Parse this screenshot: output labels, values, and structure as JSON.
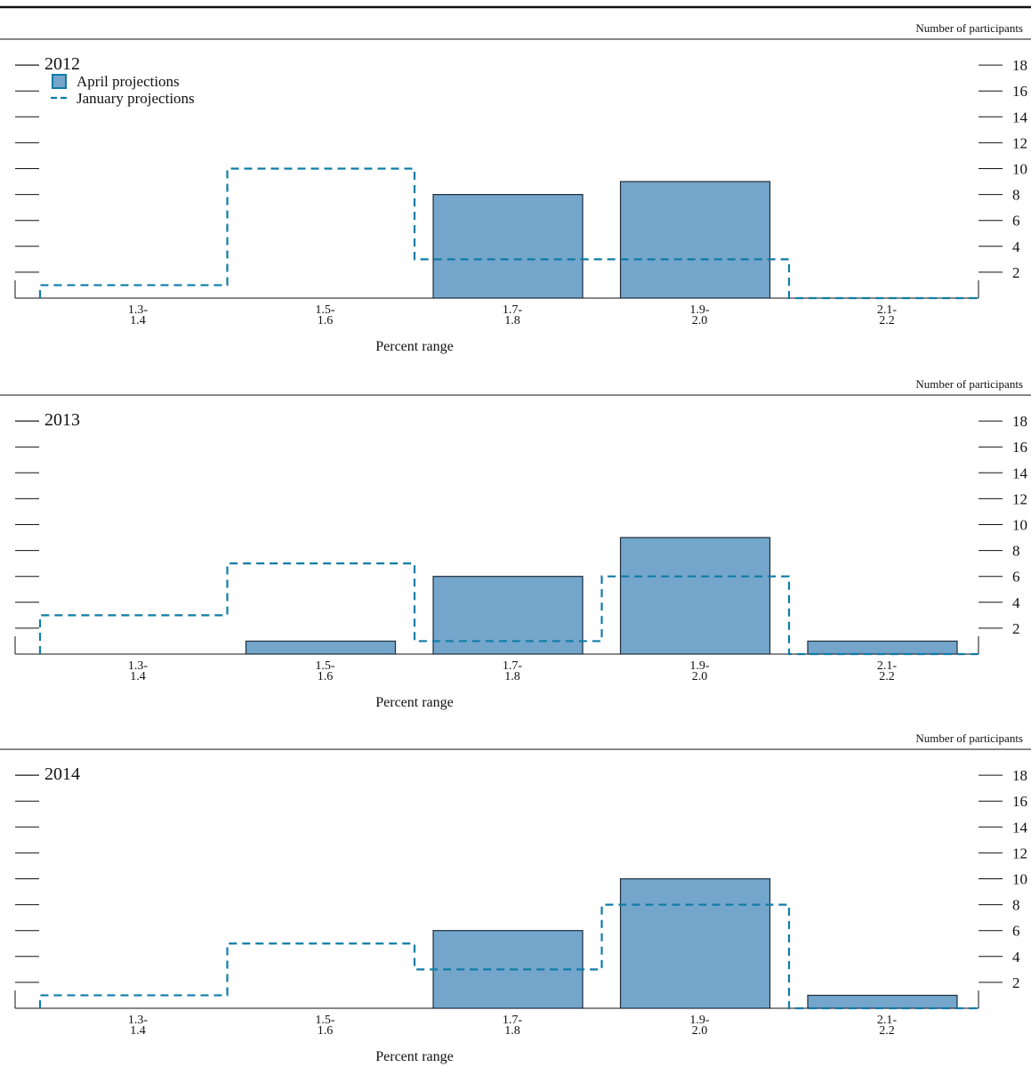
{
  "colors": {
    "bar_fill": "#74a6cc",
    "bar_stroke": "#1f2c38",
    "dash_line": "#0f7ca6",
    "axis": "#111111"
  },
  "legend": {
    "april_label": "April projections",
    "january_label": "January projections"
  },
  "chart_data": [
    {
      "type": "bar",
      "title": "2012",
      "unit_label": "Number of participants",
      "xlabel": "Percent range",
      "categories": [
        "1.3-\n1.4",
        "1.5-\n1.6",
        "1.7-\n1.8",
        "1.9-\n2.0",
        "2.1-\n2.2"
      ],
      "ylim": [
        0,
        19
      ],
      "yticks": [
        2,
        4,
        6,
        8,
        10,
        12,
        14,
        16,
        18
      ],
      "series": [
        {
          "name": "April projections",
          "style": "bar",
          "values": [
            0,
            0,
            8,
            9,
            0
          ]
        },
        {
          "name": "January projections",
          "style": "dashed-step",
          "values": [
            1,
            10,
            3,
            3,
            0
          ]
        }
      ],
      "legend": "top-left"
    },
    {
      "type": "bar",
      "title": "2013",
      "unit_label": "Number of participants",
      "xlabel": "Percent range",
      "categories": [
        "1.3-\n1.4",
        "1.5-\n1.6",
        "1.7-\n1.8",
        "1.9-\n2.0",
        "2.1-\n2.2"
      ],
      "ylim": [
        0,
        19
      ],
      "yticks": [
        2,
        4,
        6,
        8,
        10,
        12,
        14,
        16,
        18
      ],
      "series": [
        {
          "name": "April projections",
          "style": "bar",
          "values": [
            0,
            1,
            6,
            9,
            1
          ]
        },
        {
          "name": "January projections",
          "style": "dashed-step",
          "values": [
            3,
            7,
            1,
            6,
            0
          ]
        }
      ]
    },
    {
      "type": "bar",
      "title": "2014",
      "unit_label": "Number of participants",
      "xlabel": "Percent range",
      "categories": [
        "1.3-\n1.4",
        "1.5-\n1.6",
        "1.7-\n1.8",
        "1.9-\n2.0",
        "2.1-\n2.2"
      ],
      "ylim": [
        0,
        19
      ],
      "yticks": [
        2,
        4,
        6,
        8,
        10,
        12,
        14,
        16,
        18
      ],
      "series": [
        {
          "name": "April projections",
          "style": "bar",
          "values": [
            0,
            0,
            6,
            10,
            1
          ]
        },
        {
          "name": "January projections",
          "style": "dashed-step",
          "values": [
            1,
            5,
            3,
            8,
            0
          ]
        }
      ]
    }
  ]
}
